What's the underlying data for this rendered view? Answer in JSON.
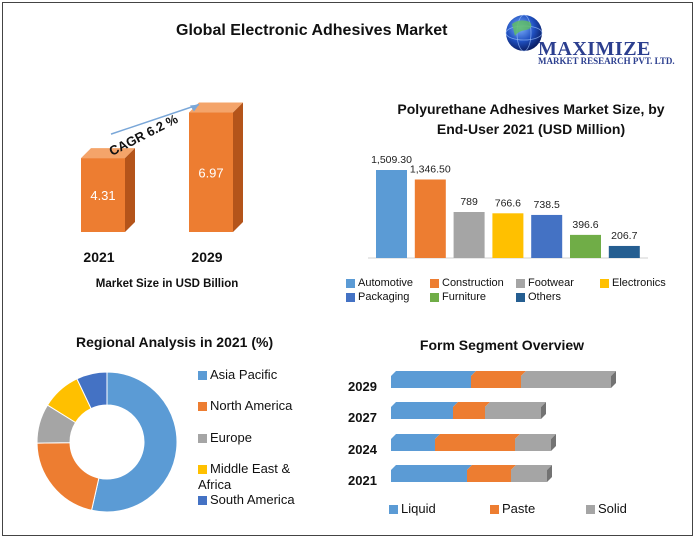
{
  "title": "Global Electronic Adhesives Market",
  "logo": {
    "name": "MAXIMIZE",
    "subtitle": "MARKET RESEARCH PVT. LTD.",
    "icon": "globe-icon"
  },
  "colors": {
    "blue": "#5B9BD5",
    "orange": "#ED7D31",
    "gray": "#A5A5A5",
    "yellow": "#FFC000",
    "darkblue": "#4472C4",
    "green": "#70AD47",
    "navy": "#255E91"
  },
  "chart_data": [
    {
      "type": "bar",
      "title": "",
      "categories": [
        "2021",
        "2029"
      ],
      "values": [
        4.31,
        6.97
      ],
      "value_labels": [
        "4.31",
        "6.97"
      ],
      "xlabel": "Market Size in USD Billion",
      "annotation": "CAGR 6.2 %"
    },
    {
      "type": "bar",
      "title": "Polyurethane Adhesives Market Size, by End-User 2021 (USD Million)",
      "categories": [
        "Automotive",
        "Construction",
        "Footwear",
        "Electronics",
        "Packaging",
        "Furniture",
        "Others"
      ],
      "values": [
        1509.3,
        1346.5,
        789,
        766.6,
        738.5,
        396.6,
        206.7
      ],
      "value_labels": [
        "1,509.30",
        "1,346.50",
        "789",
        "766.6",
        "738.5",
        "396.6",
        "206.7"
      ],
      "legend": [
        "Automotive",
        "Construction",
        "Footwear",
        "Electronics",
        "Packaging",
        "Furniture",
        "Others"
      ]
    },
    {
      "type": "pie",
      "title": "Regional Analysis in 2021 (%)",
      "categories": [
        "Asia Pacific",
        "North America",
        "Europe",
        "Middle East & Africa",
        "South America"
      ],
      "values": [
        53,
        21,
        9,
        9,
        7
      ]
    },
    {
      "type": "bar",
      "orientation": "horizontal",
      "stacked": true,
      "title": "Form Segment Overview",
      "categories": [
        "2029",
        "2027",
        "2024",
        "2021"
      ],
      "series": [
        {
          "name": "Liquid",
          "values": [
            80,
            62,
            44,
            76
          ]
        },
        {
          "name": "Paste",
          "values": [
            50,
            32,
            80,
            44
          ]
        },
        {
          "name": "Solid",
          "values": [
            90,
            56,
            36,
            36
          ]
        }
      ]
    }
  ]
}
